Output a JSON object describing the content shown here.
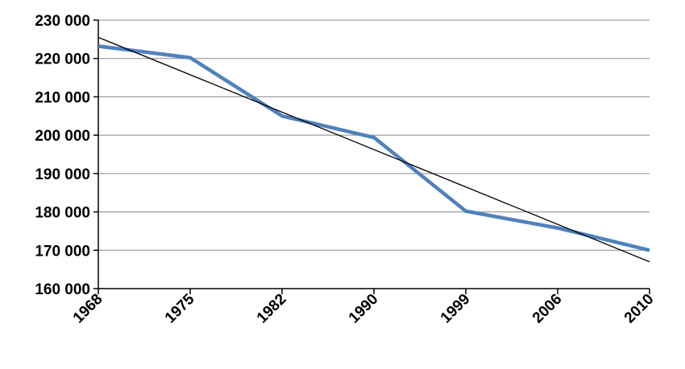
{
  "chart_data": {
    "type": "line",
    "categories": [
      "1968",
      "1975",
      "1982",
      "1990",
      "1999",
      "2006",
      "2010"
    ],
    "series": [
      {
        "color": "#4f81bd",
        "values": [
          223200,
          220200,
          205000,
          199400,
          180200,
          175800,
          170000
        ]
      }
    ],
    "trendline": {
      "color": "#000000",
      "values": [
        225500,
        167000
      ]
    },
    "ylim": [
      160000,
      230000
    ],
    "yticks": [
      {
        "value": 160000,
        "label": "160 000"
      },
      {
        "value": 170000,
        "label": "170 000"
      },
      {
        "value": 180000,
        "label": "180 000"
      },
      {
        "value": 190000,
        "label": "190 000"
      },
      {
        "value": 200000,
        "label": "200 000"
      },
      {
        "value": 210000,
        "label": "210 000"
      },
      {
        "value": 220000,
        "label": "220 000"
      },
      {
        "value": 230000,
        "label": "230 000"
      }
    ],
    "grid": true
  }
}
